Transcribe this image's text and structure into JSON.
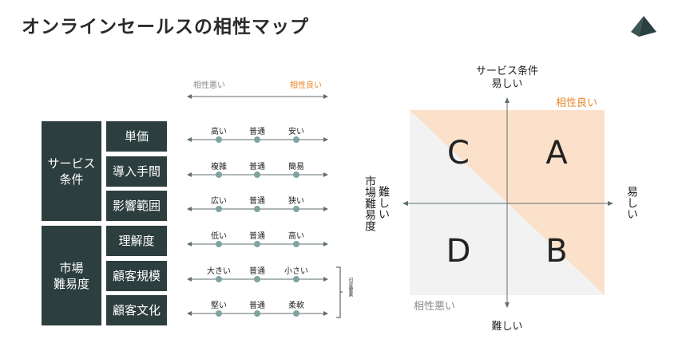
{
  "title": "オンラインセールスの相性マップ",
  "colors": {
    "dark": "#2d3e3e",
    "good": "#e8872d",
    "bad": "#8a8a8a",
    "good_fill": "#fbe1ca",
    "bad_fill": "#f2f2f2",
    "axis": "#5f6e6e",
    "dot": "#7fa3a0"
  },
  "scale_header": {
    "left": "相性悪い",
    "right": "相性良い"
  },
  "groups": [
    {
      "label": "サービス\n条件",
      "items": [
        {
          "label": "単価",
          "options": [
            "高い",
            "普通",
            "安い"
          ]
        },
        {
          "label": "導入手間",
          "options": [
            "複雑",
            "普通",
            "簡易"
          ]
        },
        {
          "label": "影響範囲",
          "options": [
            "広い",
            "普通",
            "狭い"
          ]
        }
      ]
    },
    {
      "label": "市場\n難易度",
      "items": [
        {
          "label": "理解度",
          "options": [
            "低い",
            "普通",
            "高い"
          ]
        },
        {
          "label": "顧客規模",
          "options": [
            "大きい",
            "普通",
            "小さい"
          ]
        },
        {
          "label": "顧客文化",
          "options": [
            "堅い",
            "普通",
            "柔軟"
          ]
        }
      ]
    }
  ],
  "variable_note": "可変要素",
  "matrix": {
    "top_axis": "サービス条件",
    "top_end": "易しい",
    "bottom_end": "難しい",
    "left_axis": "市場難易度",
    "left_end": "難しい",
    "right_end": "易しい",
    "good_label": "相性良い",
    "bad_label": "相性悪い",
    "quadrants": [
      "A",
      "B",
      "C",
      "D"
    ]
  }
}
